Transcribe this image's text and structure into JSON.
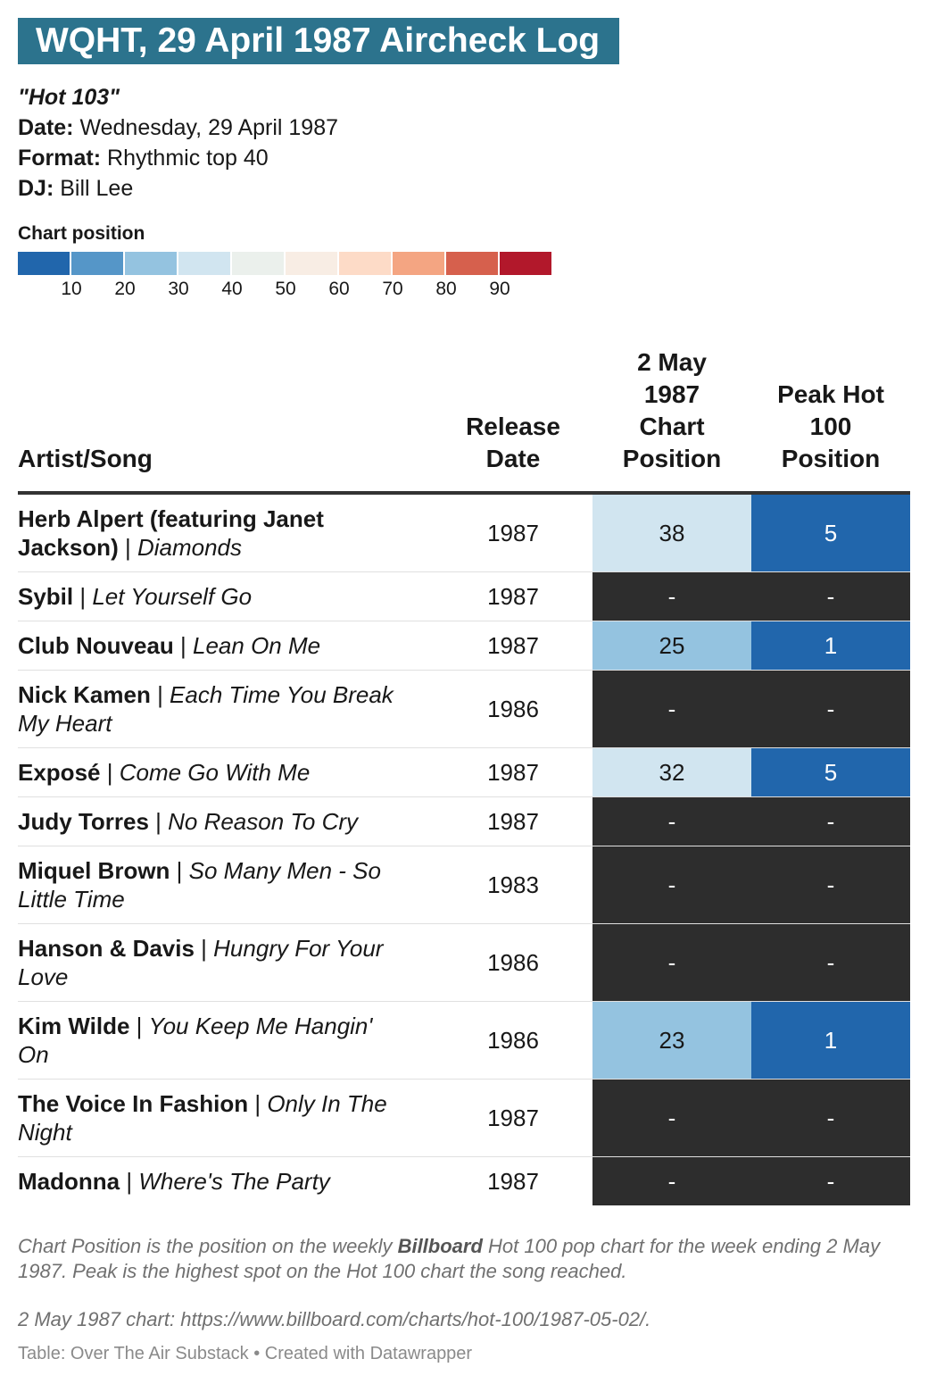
{
  "title": "WQHT, 29 April 1987 Aircheck Log",
  "station": {
    "nickname": "\"Hot 103\"",
    "date_label": "Date:",
    "date": "Wednesday, 29 April 1987",
    "format_label": "Format:",
    "format": "Rhythmic top 40",
    "dj_label": "DJ:",
    "dj": "Bill Lee"
  },
  "legend": {
    "title": "Chart position",
    "colors": [
      "#2166ac",
      "#5596c8",
      "#94c3e0",
      "#d1e5f0",
      "#ebf0ec",
      "#f8ede4",
      "#fddbc7",
      "#f4a582",
      "#d6604d",
      "#b2182b"
    ],
    "labels": [
      "10",
      "20",
      "30",
      "40",
      "50",
      "60",
      "70",
      "80",
      "90"
    ]
  },
  "chart_data": {
    "type": "table",
    "columns": [
      "Artist/Song",
      "Release Date",
      "2 May 1987 Chart Position",
      "Peak Hot 100 Position"
    ],
    "headers": {
      "artist": "Artist/Song",
      "release": "Release Date",
      "chart": "2 May 1987 Chart Position",
      "peak": "Peak Hot 100 Position"
    },
    "empty_color": "#2d2d2d",
    "rows": [
      {
        "artist": "Herb Alpert (featuring Janet Jackson)",
        "song": "Diamonds",
        "release": "1987",
        "chart": "38",
        "peak": "5"
      },
      {
        "artist": "Sybil",
        "song": "Let Yourself Go",
        "release": "1987",
        "chart": "-",
        "peak": "-"
      },
      {
        "artist": "Club Nouveau",
        "song": "Lean On Me",
        "release": "1987",
        "chart": "25",
        "peak": "1"
      },
      {
        "artist": "Nick Kamen",
        "song": "Each Time You Break My Heart",
        "release": "1986",
        "chart": "-",
        "peak": "-"
      },
      {
        "artist": "Exposé",
        "song": "Come Go With Me",
        "release": "1987",
        "chart": "32",
        "peak": "5"
      },
      {
        "artist": "Judy Torres",
        "song": "No Reason To Cry",
        "release": "1987",
        "chart": "-",
        "peak": "-"
      },
      {
        "artist": "Miquel Brown",
        "song": "So Many Men - So Little Time",
        "release": "1983",
        "chart": "-",
        "peak": "-"
      },
      {
        "artist": "Hanson & Davis",
        "song": "Hungry For Your Love",
        "release": "1986",
        "chart": "-",
        "peak": "-"
      },
      {
        "artist": "Kim Wilde",
        "song": "You Keep Me Hangin' On",
        "release": "1986",
        "chart": "23",
        "peak": "1"
      },
      {
        "artist": "The Voice In Fashion",
        "song": "Only In The Night",
        "release": "1987",
        "chart": "-",
        "peak": "-"
      },
      {
        "artist": "Madonna",
        "song": "Where's The Party",
        "release": "1987",
        "chart": "-",
        "peak": "-"
      }
    ]
  },
  "notes": {
    "note1_pre": "Chart Position is the position on the weekly ",
    "note1_bold": "Billboard",
    "note1_post": " Hot 100 pop chart for the week ending 2 May 1987. Peak is the highest spot on the Hot 100 chart the song reached.",
    "note2": "2 May 1987 chart: https://www.billboard.com/charts/hot-100/1987-05-02/."
  },
  "source": "Table: Over The Air Substack • Created with Datawrapper"
}
